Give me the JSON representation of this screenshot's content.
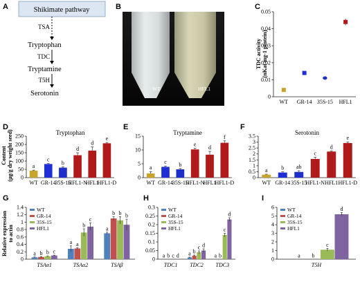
{
  "panels": {
    "A": {
      "letter": "A",
      "box": "Shikimate pathway",
      "compounds": [
        "Tryptophan",
        "Tryptamine",
        "Serotonin"
      ],
      "enzymes": [
        "TSA",
        "TDC",
        "T5H"
      ]
    },
    "B": {
      "letter": "B",
      "tube_labels": [
        "WT",
        "HFL1"
      ]
    }
  },
  "colors": {
    "WT": "#C8A52A",
    "GR-14": "#1F2FD6",
    "35S-15": "#1E2ECB",
    "HFL1": "#B01A1A",
    "qWT": "#4F81BD",
    "qGR": "#C0504D",
    "q35S": "#9BBB59",
    "qHFL1": "#8064A2"
  },
  "chart_data": [
    {
      "id": "C",
      "type": "scatter",
      "title": "",
      "xlabel": "",
      "ylabel": "TDC activity\n(nKat mg-1 protein)",
      "categories": [
        "WT",
        "GR-14",
        "35S-15",
        "HFL1"
      ],
      "values": [
        0.004,
        0.014,
        0.011,
        0.044
      ],
      "errors": [
        0.0005,
        0.001,
        0.001,
        0.002
      ],
      "ylim": [
        0,
        0.05
      ],
      "yticks": [
        "0",
        "0.01",
        "0.02",
        "0.03",
        "0.04",
        "0.05"
      ]
    },
    {
      "id": "D",
      "type": "bar",
      "title": "Tryptophan",
      "ylabel": "Content\n(μg/g dry weight seed)",
      "categories": [
        "WT",
        "GR-14",
        "35S-15",
        "HFL1-N",
        "HFL1",
        "HFL1-D"
      ],
      "values": [
        42,
        82,
        60,
        135,
        163,
        207
      ],
      "errors": [
        3,
        3,
        5,
        15,
        22,
        5
      ],
      "letters": [
        "a",
        "c",
        "b",
        "d",
        "d",
        "e"
      ],
      "ylim": [
        0,
        250
      ],
      "yticks": [
        "0",
        "50",
        "100",
        "150",
        "200",
        "250"
      ]
    },
    {
      "id": "E",
      "type": "bar",
      "title": "Tryptamine",
      "categories": [
        "WT",
        "GR-14",
        "35S-15",
        "HFL1-N",
        "HFL1",
        "HFL1-D"
      ],
      "values": [
        1.5,
        3.9,
        3.0,
        10.2,
        8.3,
        12.6
      ],
      "errors": [
        0.7,
        0.3,
        0.3,
        0.4,
        1.2,
        0.7
      ],
      "letters": [
        "a",
        "c",
        "b",
        "e",
        "d",
        "f"
      ],
      "ylim": [
        0,
        15
      ],
      "yticks": [
        "0",
        "5",
        "10",
        "15"
      ]
    },
    {
      "id": "F",
      "type": "bar",
      "title": "Serotonin",
      "categories": [
        "WT",
        "GR-14",
        "35S-15",
        "HFL1-N",
        "HFL1",
        "HFL1-D"
      ],
      "values": [
        0.25,
        0.43,
        0.48,
        1.58,
        2.2,
        2.92
      ],
      "errors": [
        0.04,
        0.06,
        0.1,
        0.15,
        0.06,
        0.1
      ],
      "letters": [
        "a",
        "b",
        "ab",
        "c",
        "d",
        "e"
      ],
      "ylim": [
        0,
        3.5
      ],
      "yticks": [
        "0",
        "0.5",
        "1",
        "1.5",
        "2",
        "2.5",
        "3",
        "3.5"
      ]
    },
    {
      "id": "G",
      "type": "bar",
      "ylabel": "Relative expression\nto actin",
      "categories": [
        "TSAα1",
        "TSAα2",
        "TSAβ"
      ],
      "series": [
        {
          "name": "WT",
          "values": [
            0.05,
            0.28,
            0.7
          ],
          "errors": [
            0.01,
            0.08,
            0.03
          ],
          "letters": [
            "a",
            "a",
            "a"
          ]
        },
        {
          "name": "GR-14",
          "values": [
            0.06,
            0.29,
            1.1
          ],
          "errors": [
            0.01,
            0.02,
            0.05
          ],
          "letters": [
            "b",
            "a",
            "b"
          ]
        },
        {
          "name": "35S-15",
          "values": [
            0.08,
            0.72,
            1.05
          ],
          "errors": [
            0.01,
            0.1,
            0.1
          ],
          "letters": [
            "b",
            "b",
            "b"
          ]
        },
        {
          "name": "HFL1",
          "values": [
            0.1,
            0.88,
            0.93
          ],
          "errors": [
            0.01,
            0.1,
            0.15
          ],
          "letters": [
            "c",
            "c",
            "b"
          ]
        }
      ],
      "ylim": [
        0,
        1.4
      ],
      "yticks": [
        "0",
        "0.2",
        "0.4",
        "0.6",
        "0.8",
        "1",
        "1.2",
        "1.4"
      ]
    },
    {
      "id": "H",
      "type": "bar",
      "categories": [
        "TDC1",
        "TDC2",
        "TDC3"
      ],
      "series": [
        {
          "name": "WT",
          "values": [
            0.0,
            0.01,
            0.0
          ],
          "errors": [
            0,
            0.002,
            0
          ],
          "letters": [
            "a",
            "a",
            "a"
          ]
        },
        {
          "name": "GR-14",
          "values": [
            0.0,
            0.02,
            0.0
          ],
          "errors": [
            0,
            0.004,
            0
          ],
          "letters": [
            "b",
            "b",
            "b"
          ]
        },
        {
          "name": "35S-15",
          "values": [
            0.0,
            0.04,
            0.14
          ],
          "errors": [
            0,
            0.008,
            0.01
          ],
          "letters": [
            "c",
            "c",
            "c"
          ]
        },
        {
          "name": "HFL1",
          "values": [
            0.0,
            0.05,
            0.23
          ],
          "errors": [
            0,
            0.01,
            0.01
          ],
          "letters": [
            "d",
            "d",
            "d"
          ]
        }
      ],
      "ylim": [
        0,
        0.3
      ],
      "yticks": [
        "0",
        "0.05",
        "0.1",
        "0.15",
        "0.2",
        "0.25",
        "0.3"
      ]
    },
    {
      "id": "I",
      "type": "bar",
      "categories": [
        "T5H"
      ],
      "series": [
        {
          "name": "WT",
          "values": [
            0.0
          ],
          "errors": [
            0
          ],
          "letters": [
            "a"
          ]
        },
        {
          "name": "GR-14",
          "values": [
            0.0
          ],
          "errors": [
            0
          ],
          "letters": [
            "b"
          ]
        },
        {
          "name": "35S-15",
          "values": [
            1.1
          ],
          "errors": [
            0.15
          ],
          "letters": [
            "c"
          ]
        },
        {
          "name": "HFL1",
          "values": [
            5.2
          ],
          "errors": [
            0.2
          ],
          "letters": [
            "d"
          ]
        }
      ],
      "ylim": [
        0,
        6
      ],
      "yticks": [
        "0",
        "1",
        "2",
        "3",
        "4",
        "5",
        "6"
      ]
    }
  ]
}
